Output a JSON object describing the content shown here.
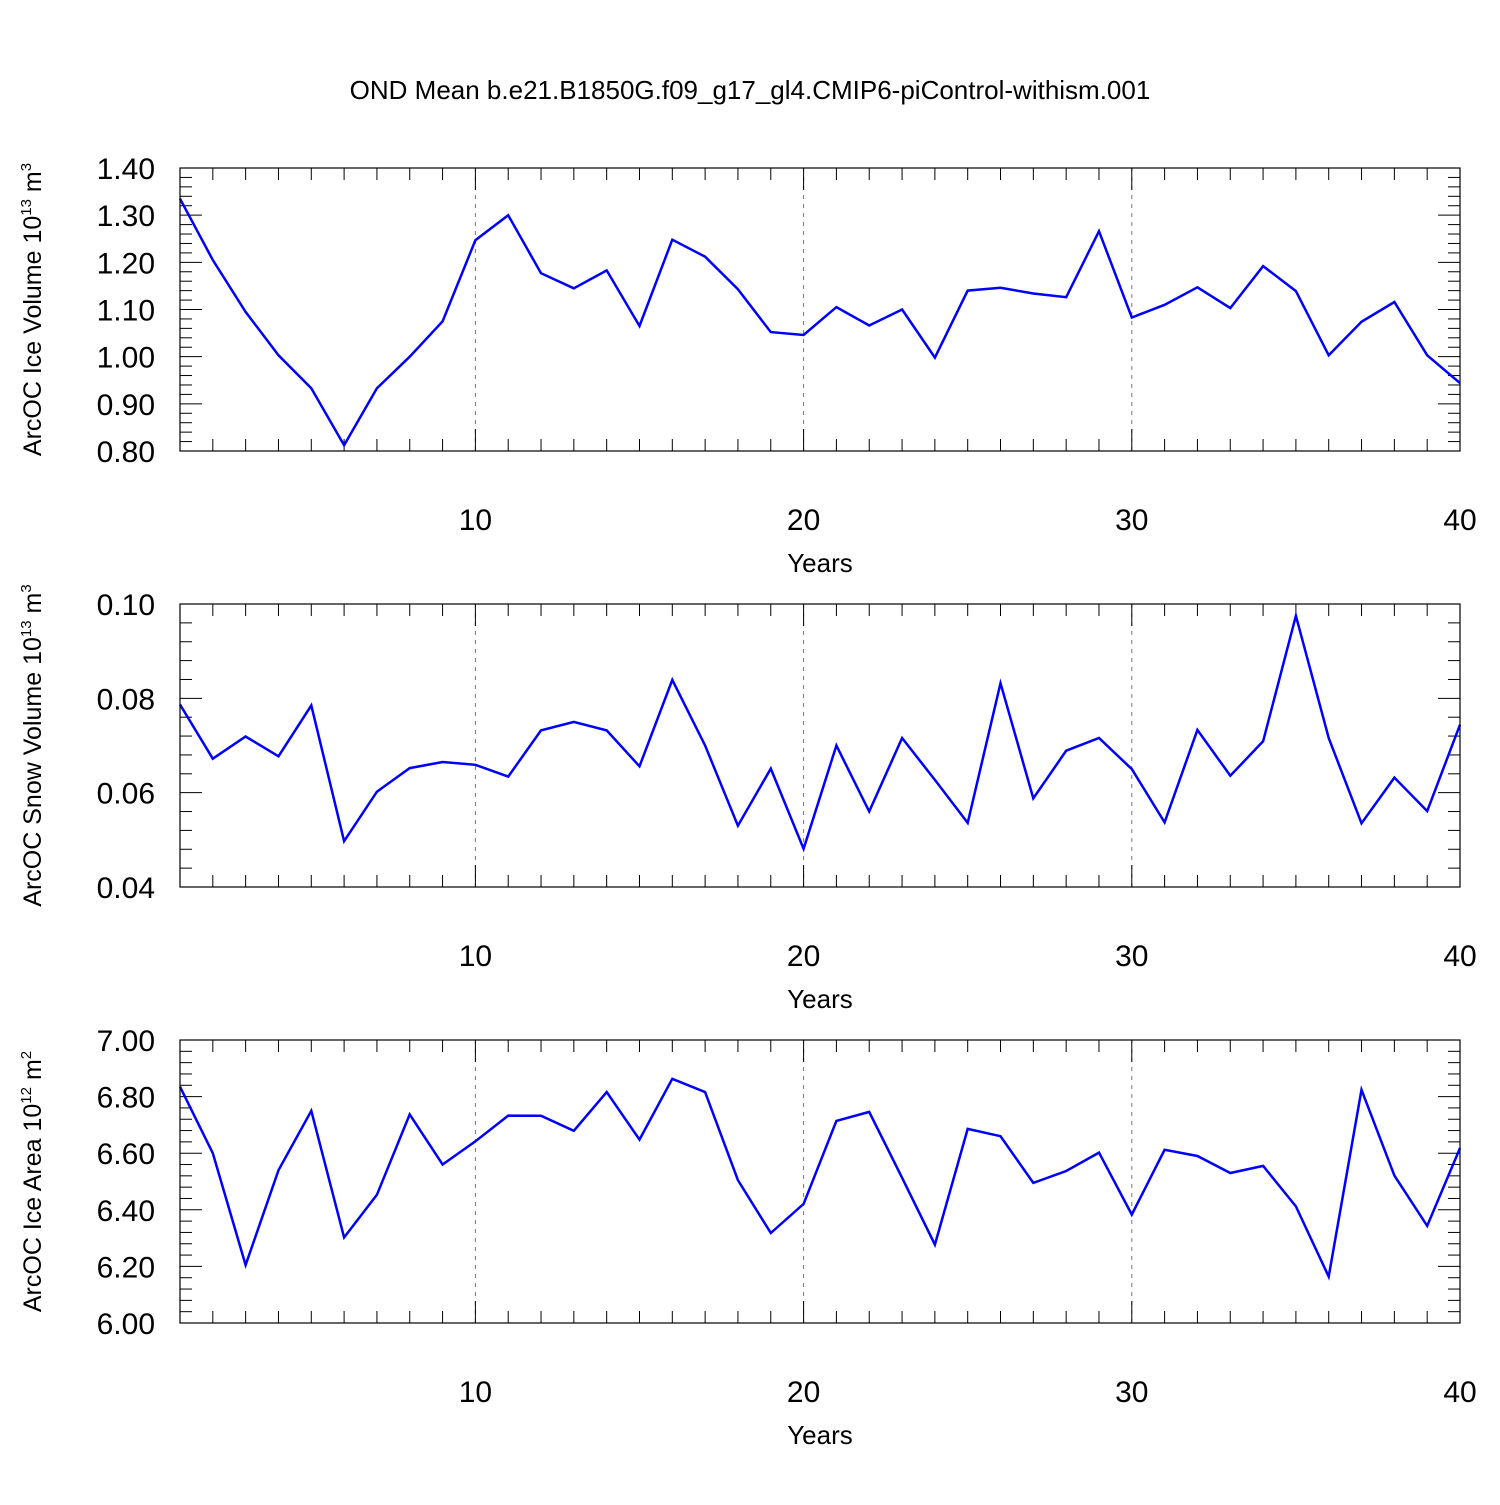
{
  "title": "OND Mean b.e21.B1850G.f09_g17_gl4.CMIP6-piControl-withism.001",
  "colors": {
    "series": "#0000ff",
    "axes": "#000000",
    "grid": "#777777"
  },
  "chart_data": [
    {
      "type": "line",
      "title": "",
      "xlabel": "Years",
      "ylabel": {
        "prefix": "ArcOC Ice Volume 10",
        "exp": "13",
        "unit": " m",
        "unit_exp": "3"
      },
      "xlim": [
        1,
        40
      ],
      "ylim": [
        0.8,
        1.4
      ],
      "xticks": [
        10,
        20,
        30,
        40
      ],
      "yticks": [
        "0.80",
        "0.90",
        "1.00",
        "1.10",
        "1.20",
        "1.30",
        "1.40"
      ],
      "grid": "vertical dashed at major x ticks",
      "series": [
        {
          "x": [
            1,
            2,
            3,
            4,
            5,
            6,
            7,
            8,
            9,
            10,
            11,
            12,
            13,
            14,
            15,
            16,
            17,
            18,
            19,
            20,
            21,
            22,
            23,
            24,
            25,
            26,
            27,
            28,
            29,
            30,
            31,
            32,
            33,
            34,
            35,
            36,
            37,
            38,
            39,
            40
          ],
          "values": [
            1.335,
            1.205,
            1.095,
            1.003,
            0.933,
            0.812,
            0.933,
            1.0,
            1.075,
            1.247,
            1.3,
            1.177,
            1.145,
            1.183,
            1.065,
            1.248,
            1.212,
            1.143,
            1.052,
            1.046,
            1.105,
            1.066,
            1.1,
            0.998,
            1.14,
            1.146,
            1.134,
            1.126,
            1.266,
            1.083,
            1.11,
            1.147,
            1.103,
            1.192,
            1.139,
            1.003,
            1.074,
            1.116,
            1.003,
            0.944
          ]
        }
      ]
    },
    {
      "type": "line",
      "title": "",
      "xlabel": "Years",
      "ylabel": {
        "prefix": "ArcOC Snow Volume 10",
        "exp": "13",
        "unit": " m",
        "unit_exp": "3"
      },
      "xlim": [
        1,
        40
      ],
      "ylim": [
        0.04,
        0.1
      ],
      "xticks": [
        10,
        20,
        30,
        40
      ],
      "yticks": [
        "0.04",
        "0.06",
        "0.08",
        "0.10"
      ],
      "grid": "vertical dashed at major x ticks",
      "series": [
        {
          "x": [
            1,
            2,
            3,
            4,
            5,
            6,
            7,
            8,
            9,
            10,
            11,
            12,
            13,
            14,
            15,
            16,
            17,
            18,
            19,
            20,
            21,
            22,
            23,
            24,
            25,
            26,
            27,
            28,
            29,
            30,
            31,
            32,
            33,
            34,
            35,
            36,
            37,
            38,
            39,
            40
          ],
          "values": [
            0.0787,
            0.0672,
            0.0719,
            0.0677,
            0.0785,
            0.0497,
            0.0602,
            0.0652,
            0.0665,
            0.0659,
            0.0634,
            0.0732,
            0.075,
            0.0732,
            0.0656,
            0.0839,
            0.07,
            0.053,
            0.0651,
            0.0481,
            0.07,
            0.056,
            0.0716,
            0.0627,
            0.0536,
            0.0832,
            0.0588,
            0.0689,
            0.0716,
            0.065,
            0.0537,
            0.0733,
            0.0636,
            0.0709,
            0.0975,
            0.0716,
            0.0535,
            0.0632,
            0.0561,
            0.0744
          ]
        }
      ]
    },
    {
      "type": "line",
      "title": "",
      "xlabel": "Years",
      "ylabel": {
        "prefix": "ArcOC Ice Area 10",
        "exp": "12",
        "unit": " m",
        "unit_exp": "2"
      },
      "xlim": [
        1,
        40
      ],
      "ylim": [
        6.0,
        7.0
      ],
      "xticks": [
        10,
        20,
        30,
        40
      ],
      "yticks": [
        "6.00",
        "6.20",
        "6.40",
        "6.60",
        "6.80",
        "7.00"
      ],
      "grid": "vertical dashed at major x ticks",
      "series": [
        {
          "x": [
            1,
            2,
            3,
            4,
            5,
            6,
            7,
            8,
            9,
            10,
            11,
            12,
            13,
            14,
            15,
            16,
            17,
            18,
            19,
            20,
            21,
            22,
            23,
            24,
            25,
            26,
            27,
            28,
            29,
            30,
            31,
            32,
            33,
            34,
            35,
            36,
            37,
            38,
            39,
            40
          ],
          "values": [
            6.835,
            6.6,
            6.205,
            6.54,
            6.75,
            6.302,
            6.453,
            6.737,
            6.56,
            6.642,
            6.733,
            6.732,
            6.679,
            6.816,
            6.648,
            6.863,
            6.816,
            6.505,
            6.318,
            6.421,
            6.714,
            6.746,
            6.513,
            6.277,
            6.686,
            6.66,
            6.495,
            6.537,
            6.602,
            6.383,
            6.612,
            6.59,
            6.53,
            6.555,
            6.412,
            6.164,
            6.824,
            6.521,
            6.343,
            6.618
          ]
        }
      ]
    }
  ]
}
